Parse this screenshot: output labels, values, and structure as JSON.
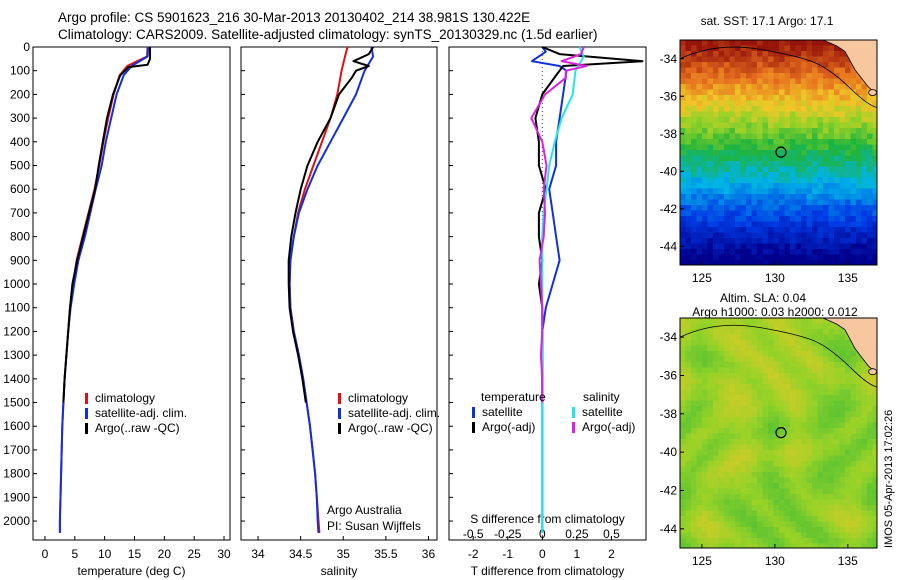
{
  "header": {
    "title_line1": "Argo profile: CS 5901623_216 30-Mar-2013 20130402_214 38.981S 130.422E",
    "title_line2": "Climatology: CARS2009. Satellite-adjusted climatology: synTS_20130329.nc (1.5d earlier)"
  },
  "colors": {
    "climatology": "#e01010",
    "satellite": "#1030e0",
    "argo": "#000000",
    "satellite_salinity": "#20e8e8",
    "argo_salinity": "#e020e0"
  },
  "chart_data": [
    {
      "type": "line",
      "name": "temperature-profile",
      "xlabel": "temperature (deg C)",
      "ylabel": "",
      "xlim": [
        -2,
        31
      ],
      "ylim": [
        2080,
        0
      ],
      "xticks": [
        0,
        5,
        10,
        15,
        20,
        25,
        30
      ],
      "yticks": [
        0,
        100,
        200,
        300,
        400,
        500,
        600,
        700,
        800,
        900,
        1000,
        1100,
        1200,
        1300,
        1400,
        1500,
        1600,
        1700,
        1800,
        1900,
        2000
      ],
      "legend": [
        "climatology",
        "satellite-adj. clim.",
        "Argo(..raw -QC)"
      ],
      "series": [
        {
          "name": "climatology",
          "color": "#e01010",
          "points": [
            [
              17.2,
              0
            ],
            [
              17.1,
              40
            ],
            [
              13.8,
              80
            ],
            [
              12.5,
              120
            ],
            [
              11.5,
              200
            ],
            [
              10.6,
              300
            ],
            [
              9.8,
              400
            ],
            [
              9.1,
              500
            ],
            [
              8.3,
              600
            ],
            [
              7.3,
              700
            ],
            [
              6.3,
              800
            ],
            [
              5.3,
              900
            ],
            [
              4.7,
              1000
            ],
            [
              4.2,
              1100
            ],
            [
              3.9,
              1200
            ],
            [
              3.6,
              1300
            ],
            [
              3.3,
              1400
            ],
            [
              3.1,
              1500
            ],
            [
              2.9,
              1600
            ],
            [
              2.8,
              1700
            ],
            [
              2.7,
              1800
            ],
            [
              2.6,
              1900
            ],
            [
              2.5,
              2000
            ],
            [
              2.5,
              2050
            ]
          ]
        },
        {
          "name": "satellite-adj. clim.",
          "color": "#1030e0",
          "points": [
            [
              17.3,
              0
            ],
            [
              17.2,
              40
            ],
            [
              14.5,
              80
            ],
            [
              13.2,
              120
            ],
            [
              12.0,
              200
            ],
            [
              11.1,
              300
            ],
            [
              10.2,
              400
            ],
            [
              9.5,
              500
            ],
            [
              8.5,
              600
            ],
            [
              7.6,
              700
            ],
            [
              6.7,
              800
            ],
            [
              5.6,
              900
            ],
            [
              4.9,
              1000
            ],
            [
              4.3,
              1100
            ],
            [
              3.9,
              1200
            ],
            [
              3.6,
              1300
            ],
            [
              3.3,
              1400
            ],
            [
              3.1,
              1500
            ],
            [
              2.9,
              1600
            ],
            [
              2.8,
              1700
            ],
            [
              2.7,
              1800
            ],
            [
              2.6,
              1900
            ],
            [
              2.5,
              2000
            ],
            [
              2.5,
              2050
            ]
          ]
        },
        {
          "name": "Argo(..raw -QC)",
          "color": "#000000",
          "points": [
            [
              17.6,
              0
            ],
            [
              17.6,
              50
            ],
            [
              17.2,
              75
            ],
            [
              14.0,
              85
            ],
            [
              12.6,
              120
            ],
            [
              11.4,
              200
            ],
            [
              10.4,
              300
            ],
            [
              9.7,
              400
            ],
            [
              9.0,
              500
            ],
            [
              8.4,
              600
            ],
            [
              7.4,
              700
            ],
            [
              6.4,
              800
            ],
            [
              5.4,
              900
            ],
            [
              4.6,
              1000
            ],
            [
              4.2,
              1100
            ],
            [
              3.9,
              1200
            ],
            [
              3.6,
              1300
            ],
            [
              3.3,
              1400
            ],
            [
              3.1,
              1500
            ]
          ]
        }
      ]
    },
    {
      "type": "line",
      "name": "salinity-profile",
      "xlabel": "salinity",
      "ylabel": "",
      "xlim": [
        33.8,
        36.1
      ],
      "ylim": [
        2080,
        0
      ],
      "xticks": [
        34,
        34.5,
        35,
        35.5,
        36
      ],
      "legend": [
        "climatology",
        "satellite-adj. clim.",
        "Argo(..raw -QC)"
      ],
      "annotation": [
        "Argo Australia",
        "PI: Susan Wijffels"
      ],
      "series": [
        {
          "name": "climatology",
          "color": "#e01010",
          "points": [
            [
              35.05,
              0
            ],
            [
              35.02,
              40
            ],
            [
              34.98,
              100
            ],
            [
              34.93,
              200
            ],
            [
              34.85,
              300
            ],
            [
              34.75,
              400
            ],
            [
              34.65,
              500
            ],
            [
              34.55,
              600
            ],
            [
              34.47,
              700
            ],
            [
              34.42,
              800
            ],
            [
              34.38,
              900
            ],
            [
              34.37,
              1000
            ],
            [
              34.38,
              1100
            ],
            [
              34.42,
              1200
            ],
            [
              34.48,
              1300
            ],
            [
              34.53,
              1400
            ],
            [
              34.57,
              1500
            ],
            [
              34.61,
              1600
            ],
            [
              34.64,
              1700
            ],
            [
              34.67,
              1800
            ],
            [
              34.69,
              1900
            ],
            [
              34.71,
              2000
            ],
            [
              34.72,
              2050
            ]
          ]
        },
        {
          "name": "satellite-adj. clim.",
          "color": "#1030e0",
          "points": [
            [
              35.33,
              0
            ],
            [
              35.35,
              40
            ],
            [
              35.25,
              100
            ],
            [
              35.15,
              200
            ],
            [
              35.0,
              300
            ],
            [
              34.85,
              400
            ],
            [
              34.7,
              500
            ],
            [
              34.58,
              600
            ],
            [
              34.48,
              700
            ],
            [
              34.42,
              800
            ],
            [
              34.38,
              900
            ],
            [
              34.37,
              1000
            ],
            [
              34.38,
              1100
            ],
            [
              34.42,
              1200
            ],
            [
              34.48,
              1300
            ],
            [
              34.53,
              1400
            ],
            [
              34.57,
              1500
            ],
            [
              34.61,
              1600
            ],
            [
              34.64,
              1700
            ],
            [
              34.67,
              1800
            ],
            [
              34.69,
              1900
            ],
            [
              34.7,
              2000
            ],
            [
              34.71,
              2050
            ]
          ]
        },
        {
          "name": "Argo(..raw -QC)",
          "color": "#000000",
          "points": [
            [
              35.35,
              0
            ],
            [
              35.3,
              30
            ],
            [
              35.12,
              60
            ],
            [
              35.3,
              80
            ],
            [
              35.15,
              100
            ],
            [
              35.1,
              130
            ],
            [
              34.95,
              200
            ],
            [
              34.85,
              300
            ],
            [
              34.7,
              400
            ],
            [
              34.58,
              500
            ],
            [
              34.5,
              600
            ],
            [
              34.44,
              700
            ],
            [
              34.39,
              800
            ],
            [
              34.36,
              900
            ],
            [
              34.36,
              1000
            ],
            [
              34.37,
              1100
            ],
            [
              34.41,
              1200
            ],
            [
              34.47,
              1300
            ],
            [
              34.52,
              1400
            ],
            [
              34.56,
              1500
            ]
          ]
        }
      ]
    },
    {
      "type": "line",
      "name": "difference-profile",
      "xlabel": "T difference from climatology",
      "xlabel_top": "S difference from climatology",
      "xlim": [
        -2.7,
        3.0
      ],
      "ylim": [
        2080,
        0
      ],
      "xticks": [
        -2,
        -1,
        0,
        1,
        2
      ],
      "xticks_top": [
        -0.5,
        -0.25,
        0,
        0.25,
        0.5
      ],
      "xticks_top_labels": [
        "-0.5",
        "-0.25",
        "0",
        "0.25",
        "0.5"
      ],
      "legend_left_title": "temperature",
      "legend_right_title": "salinity",
      "legend": [
        "satellite",
        "Argo(-adj)",
        "satellite",
        "Argo(-adj)"
      ],
      "series": [
        {
          "name": "satellite",
          "quantity": "temperature",
          "color": "#1030e0",
          "points": [
            [
              0,
              0
            ],
            [
              0.1,
              20
            ],
            [
              -0.3,
              60
            ],
            [
              0.5,
              80
            ],
            [
              0.7,
              100
            ],
            [
              0.6,
              200
            ],
            [
              0.5,
              300
            ],
            [
              0.4,
              400
            ],
            [
              0.4,
              500
            ],
            [
              0.2,
              600
            ],
            [
              0.3,
              700
            ],
            [
              0.4,
              800
            ],
            [
              0.5,
              900
            ],
            [
              0.3,
              1000
            ],
            [
              0.1,
              1100
            ],
            [
              0.0,
              1200
            ],
            [
              0.0,
              1300
            ],
            [
              0.0,
              1400
            ],
            [
              0.0,
              1500
            ],
            [
              0.0,
              1700
            ],
            [
              0.0,
              2050
            ]
          ]
        },
        {
          "name": "Argo(-adj)",
          "quantity": "temperature",
          "color": "#000000",
          "points": [
            [
              0,
              0
            ],
            [
              0.5,
              30
            ],
            [
              2.9,
              60
            ],
            [
              0.6,
              80
            ],
            [
              0.4,
              120
            ],
            [
              0.0,
              200
            ],
            [
              -0.2,
              300
            ],
            [
              -0.1,
              400
            ],
            [
              -0.1,
              500
            ],
            [
              0.1,
              600
            ],
            [
              -0.1,
              700
            ],
            [
              -0.1,
              800
            ],
            [
              0.0,
              900
            ],
            [
              -0.1,
              1000
            ],
            [
              0.0,
              1100
            ],
            [
              0.0,
              1200
            ],
            [
              0.0,
              1300
            ],
            [
              0.0,
              1400
            ],
            [
              0.0,
              1500
            ]
          ]
        },
        {
          "name": "satellite",
          "quantity": "salinity",
          "color": "#20e8e8",
          "points": [
            [
              0.27,
              0
            ],
            [
              0.3,
              40
            ],
            [
              0.26,
              80
            ],
            [
              0.24,
              100
            ],
            [
              0.22,
              200
            ],
            [
              0.14,
              300
            ],
            [
              0.09,
              400
            ],
            [
              0.05,
              500
            ],
            [
              0.03,
              600
            ],
            [
              0.01,
              700
            ],
            [
              0.0,
              800
            ],
            [
              0.0,
              900
            ],
            [
              0.0,
              1000
            ],
            [
              0.0,
              1200
            ],
            [
              0.0,
              1500
            ],
            [
              0.0,
              2050
            ]
          ]
        },
        {
          "name": "Argo(-adj)",
          "quantity": "salinity",
          "color": "#e020e0",
          "points": [
            [
              0.3,
              0
            ],
            [
              0.28,
              30
            ],
            [
              0.14,
              60
            ],
            [
              0.32,
              80
            ],
            [
              0.17,
              100
            ],
            [
              0.17,
              130
            ],
            [
              0.02,
              200
            ],
            [
              -0.08,
              300
            ],
            [
              0.0,
              400
            ],
            [
              0.03,
              500
            ],
            [
              0.01,
              600
            ],
            [
              0.02,
              700
            ],
            [
              0.01,
              800
            ],
            [
              -0.02,
              900
            ],
            [
              -0.01,
              1000
            ],
            [
              0.0,
              1100
            ],
            [
              0.0,
              1200
            ],
            [
              -0.01,
              1300
            ],
            [
              0.0,
              1400
            ],
            [
              0.0,
              1500
            ]
          ]
        }
      ]
    },
    {
      "type": "heatmap",
      "name": "sst-map",
      "title": "sat. SST: 17.1  Argo: 17.1",
      "xlim": [
        123.5,
        137
      ],
      "ylim": [
        -45,
        -33
      ],
      "xticks": [
        125,
        130,
        135
      ],
      "yticks": [
        -34,
        -36,
        -38,
        -40,
        -42,
        -44
      ],
      "argo_position": [
        130.422,
        -38.981
      ],
      "sst": 17.1,
      "argo_sst": 17.1
    },
    {
      "type": "heatmap",
      "name": "sla-map",
      "title": "Altim. SLA: 0.04",
      "subtitle": "Argo h1000: 0.03 h2000: 0.012",
      "xlim": [
        123.5,
        137
      ],
      "ylim": [
        -45,
        -33
      ],
      "xticks": [
        125,
        130,
        135
      ],
      "yticks": [
        -34,
        -36,
        -38,
        -40,
        -42,
        -44
      ],
      "argo_position": [
        130.422,
        -38.981
      ],
      "sla": 0.04
    }
  ],
  "footer": {
    "stamp": "IMOS 05-Apr-2013 17:02:26"
  }
}
